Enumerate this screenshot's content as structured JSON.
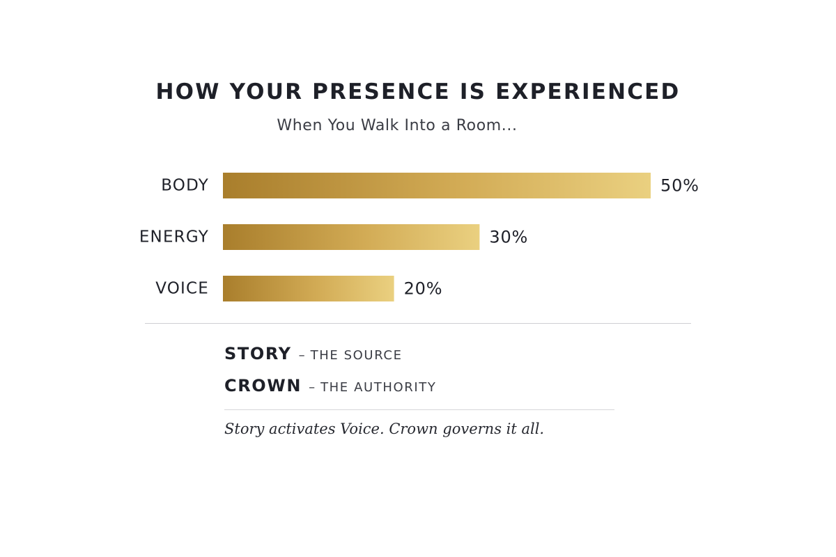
{
  "colors": {
    "bar_gradient_start": "#a97e2c",
    "bar_gradient_end": "#ead080",
    "text": "#1e2028"
  },
  "chart_data": {
    "type": "bar",
    "orientation": "horizontal",
    "title": "HOW YOUR PRESENCE IS EXPERIENCED",
    "subtitle": "When You Walk Into a Room...",
    "categories": [
      "BODY",
      "ENERGY",
      "VOICE"
    ],
    "values": [
      50,
      30,
      20
    ],
    "value_labels": [
      "50%",
      "30%",
      "20%"
    ],
    "unit": "%",
    "xlim": [
      0,
      50
    ],
    "grid": false
  },
  "legend": {
    "items": [
      {
        "term": "STORY",
        "separator": "–",
        "desc": "THE SOURCE"
      },
      {
        "term": "CROWN",
        "separator": "–",
        "desc": "THE AUTHORITY"
      }
    ],
    "tagline": "Story activates Voice. Crown governs it all."
  }
}
